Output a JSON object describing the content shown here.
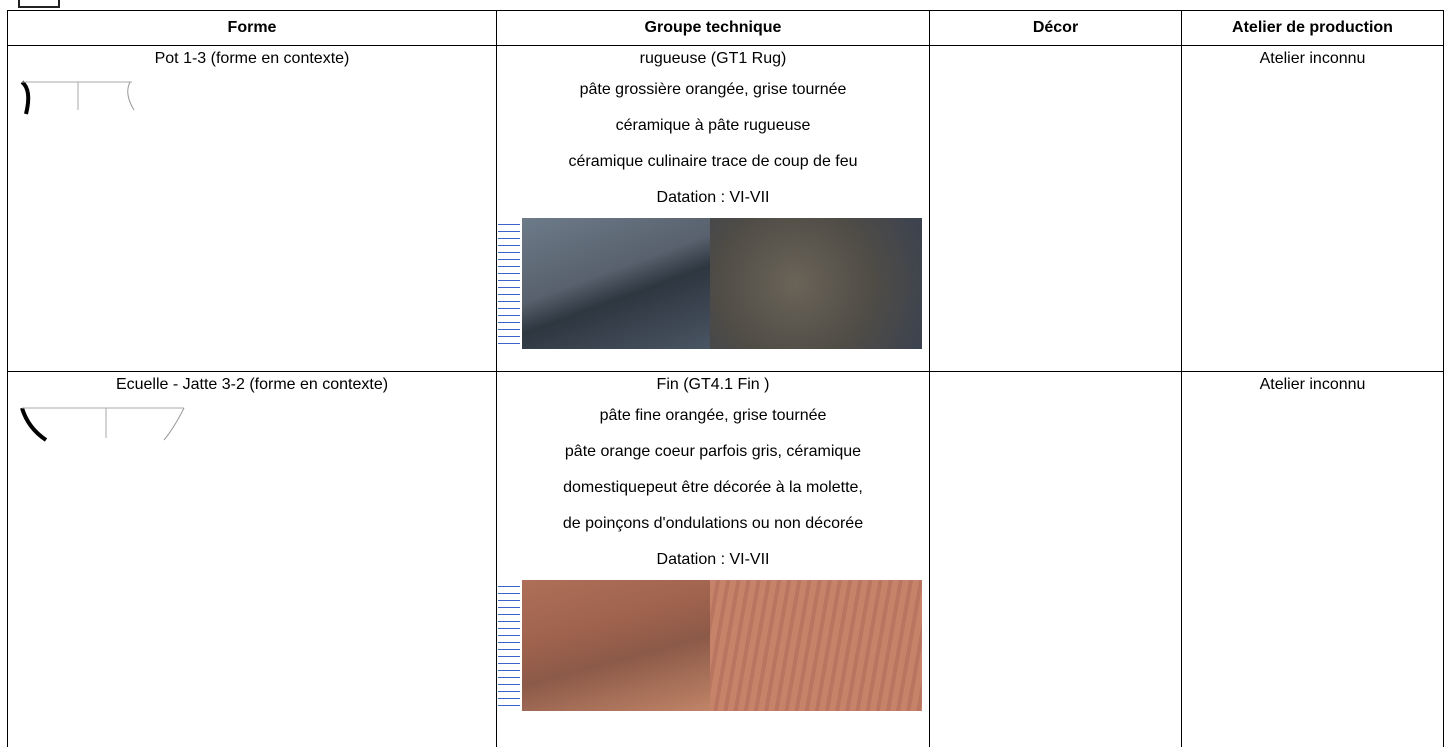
{
  "header": {
    "columns": [
      "Forme",
      "Groupe technique",
      "Décor",
      "Atelier de production"
    ]
  },
  "table": {
    "rows": [
      {
        "forme": "Pot 1-3 (forme  en contexte)",
        "groupe": [
          "rugueuse (GT1 Rug)",
          "pâte grossière orangée, grise tournée",
          "céramique à pâte rugueuse",
          "céramique culinaire trace  de coup de feu",
          "Datation : VI-VII"
        ],
        "atelier": "Atelier inconnu"
      },
      {
        "forme": "Ecuelle - Jatte 3-2 (forme  en contexte)",
        "groupe": [
          "Fin (GT4.1 Fin )",
          "pâte fine orangée, grise tournée",
          "pâte orange coeur parfois gris, céramique",
          "domestiquepeut être décorée à la molette,",
          "de poinçons d'ondulations ou non décorée",
          "Datation : VI-VII"
        ],
        "atelier": "Atelier inconnu"
      }
    ]
  }
}
